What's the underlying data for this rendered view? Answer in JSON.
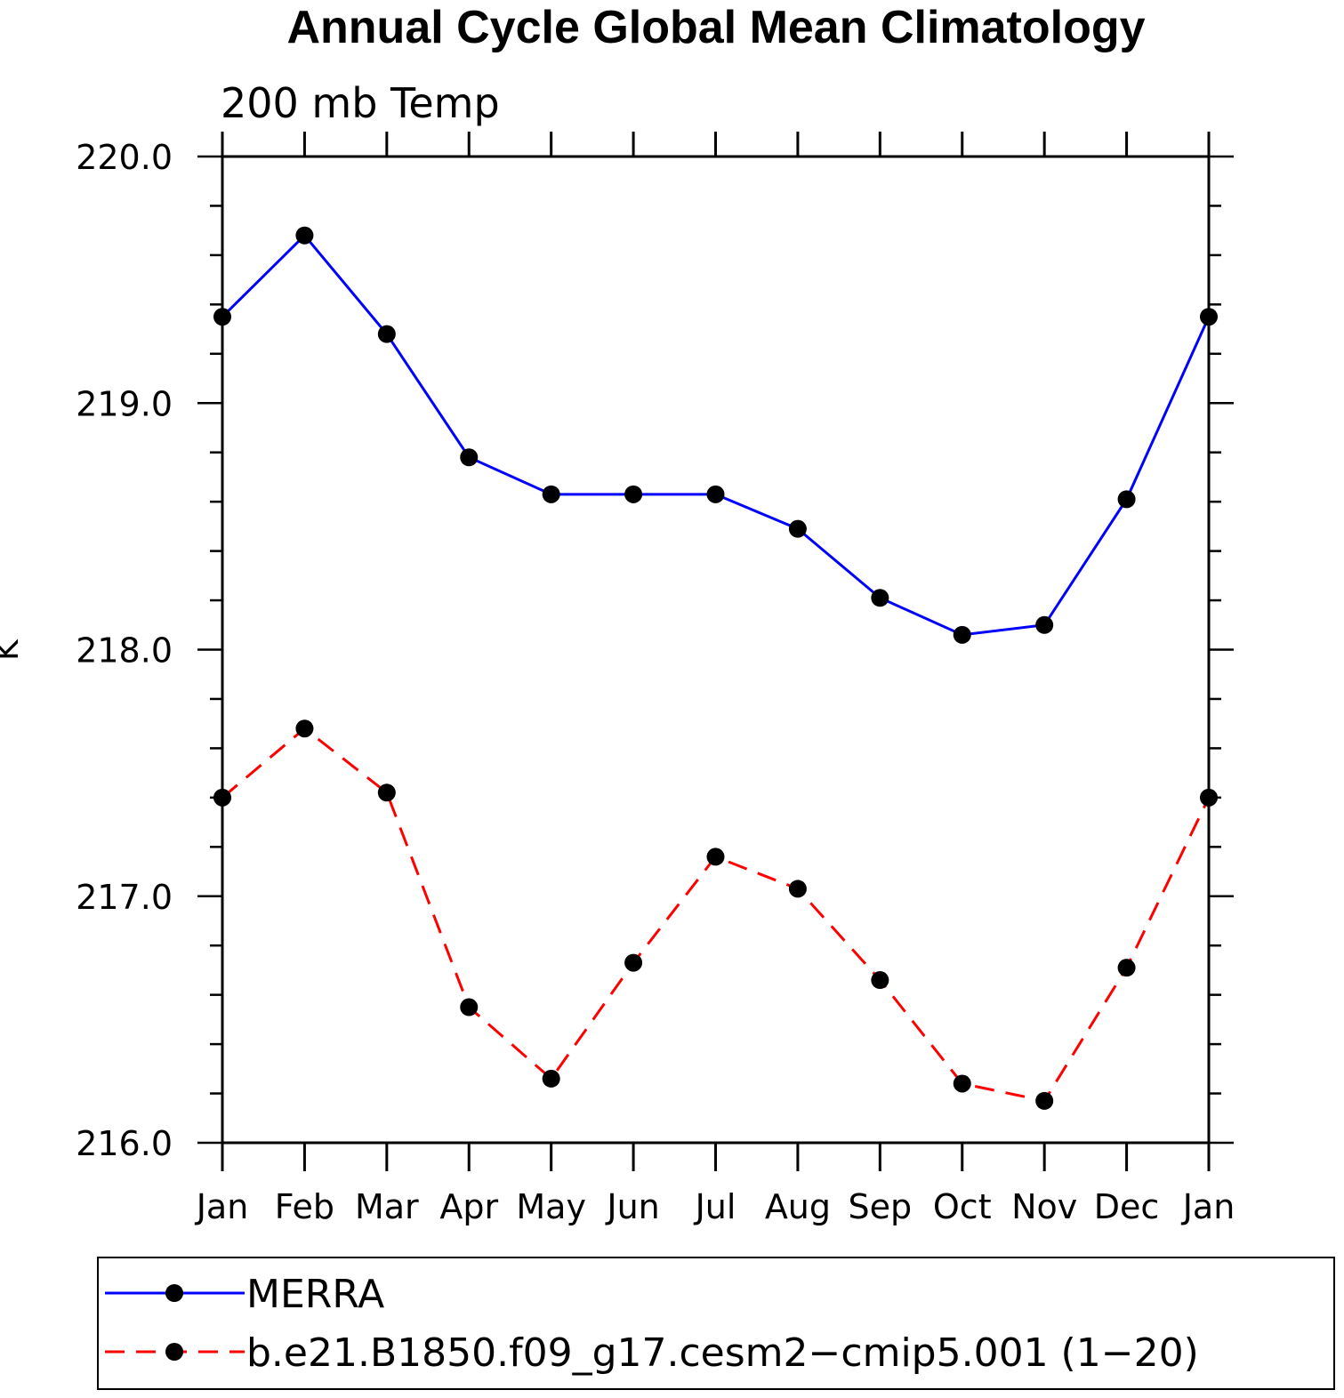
{
  "chart_data": {
    "type": "line",
    "title": "Annual Cycle Global Mean Climatology",
    "subtitle": "200 mb Temp",
    "xlabel": "",
    "ylabel": "K",
    "categories": [
      "Jan",
      "Feb",
      "Mar",
      "Apr",
      "May",
      "Jun",
      "Jul",
      "Aug",
      "Sep",
      "Oct",
      "Nov",
      "Dec",
      "Jan"
    ],
    "ylim": [
      216.0,
      220.0
    ],
    "yticks": [
      "216.0",
      "217.0",
      "218.0",
      "219.0",
      "220.0"
    ],
    "grid": false,
    "legend_position": "bottom",
    "series": [
      {
        "name": "MERRA",
        "color": "#0000ff",
        "dash": "solid",
        "values": [
          219.35,
          219.68,
          219.28,
          218.78,
          218.63,
          218.63,
          218.63,
          218.49,
          218.21,
          218.06,
          218.1,
          218.61,
          219.35
        ]
      },
      {
        "name": "b.e21.B1850.f09_g17.cesm2−cmip5.001 (1−20)",
        "color": "#ff0000",
        "dash": "dashed",
        "values": [
          217.4,
          217.68,
          217.42,
          216.55,
          216.26,
          216.73,
          217.16,
          217.03,
          216.66,
          216.24,
          216.17,
          216.71,
          217.4
        ]
      }
    ]
  }
}
